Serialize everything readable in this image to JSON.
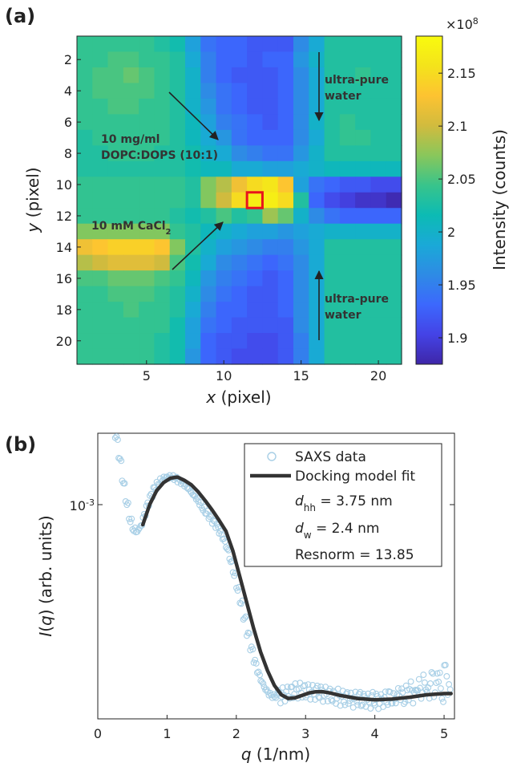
{
  "chart_data": [
    {
      "panel": "(a)",
      "type": "heatmap",
      "xlabel_var": "x",
      "xlabel_rest": " (pixel)",
      "ylabel_var": "y",
      "ylabel_rest": " (pixel)",
      "xlim": [
        0.5,
        21.5
      ],
      "ylim": [
        21.5,
        0.5
      ],
      "xticks": [
        5,
        10,
        15,
        20
      ],
      "yticks": [
        2,
        4,
        6,
        8,
        10,
        12,
        14,
        16,
        18,
        20
      ],
      "colorbar": {
        "label": "Intensity (counts)",
        "multiplier_base": "×10",
        "multiplier_exp": "8",
        "range": [
          1.875,
          2.185
        ],
        "ticks": [
          1.9,
          1.95,
          2,
          2.05,
          2.1,
          2.15
        ],
        "tick_labels": [
          "1.9",
          "1.95",
          "2",
          "2.05",
          "2.1",
          "2.15"
        ],
        "colormap": [
          "#3e26a8",
          "#4443e6",
          "#3c68fd",
          "#2e8be5",
          "#1aa9d7",
          "#0cbbb4",
          "#38c48b",
          "#89c75b",
          "#d1bb3e",
          "#fdc331",
          "#f4e31b",
          "#f9fb0e"
        ]
      },
      "values_x1e8": [
        [
          2.04,
          2.04,
          2.04,
          2.04,
          2.04,
          2.03,
          2.02,
          1.98,
          1.94,
          1.93,
          1.93,
          1.92,
          1.92,
          1.92,
          1.96,
          1.99,
          2.03,
          2.03,
          2.03,
          2.03,
          2.03
        ],
        [
          2.04,
          2.04,
          2.05,
          2.05,
          2.04,
          2.04,
          2.03,
          1.99,
          1.95,
          1.93,
          1.93,
          1.92,
          1.93,
          1.93,
          1.97,
          2.0,
          2.03,
          2.03,
          2.03,
          2.03,
          2.03
        ],
        [
          2.04,
          2.05,
          2.05,
          2.06,
          2.05,
          2.04,
          2.03,
          2.0,
          1.95,
          1.93,
          1.92,
          1.92,
          1.92,
          1.93,
          1.96,
          1.99,
          2.03,
          2.03,
          2.04,
          2.03,
          2.03
        ],
        [
          2.04,
          2.05,
          2.05,
          2.05,
          2.05,
          2.04,
          2.03,
          2.0,
          1.96,
          1.94,
          1.93,
          1.92,
          1.92,
          1.93,
          1.96,
          1.99,
          2.03,
          2.03,
          2.03,
          2.03,
          2.03
        ],
        [
          2.04,
          2.04,
          2.05,
          2.05,
          2.04,
          2.04,
          2.03,
          2.0,
          1.97,
          1.94,
          1.93,
          1.92,
          1.92,
          1.93,
          1.96,
          1.99,
          2.03,
          2.03,
          2.03,
          2.03,
          2.03
        ],
        [
          2.04,
          2.04,
          2.04,
          2.04,
          2.04,
          2.04,
          2.03,
          2.01,
          1.98,
          1.95,
          1.94,
          1.93,
          1.92,
          1.93,
          1.96,
          2.0,
          2.03,
          2.04,
          2.03,
          2.03,
          2.03
        ],
        [
          2.03,
          2.04,
          2.04,
          2.04,
          2.04,
          2.04,
          2.03,
          2.01,
          1.99,
          1.97,
          1.94,
          1.93,
          1.93,
          1.93,
          1.96,
          1.99,
          2.03,
          2.04,
          2.04,
          2.03,
          2.03
        ],
        [
          2.03,
          2.03,
          2.04,
          2.04,
          2.04,
          2.03,
          2.03,
          2.02,
          2.0,
          1.99,
          1.96,
          1.95,
          1.94,
          1.94,
          1.97,
          2.0,
          2.03,
          2.03,
          2.03,
          2.03,
          2.03
        ],
        [
          2.03,
          2.03,
          2.03,
          2.03,
          2.03,
          2.03,
          2.03,
          2.02,
          2.01,
          2.01,
          1.99,
          1.99,
          1.98,
          1.98,
          1.99,
          2.0,
          2.01,
          2.01,
          2.01,
          2.01,
          2.01
        ],
        [
          2.04,
          2.04,
          2.04,
          2.04,
          2.04,
          2.04,
          2.04,
          2.03,
          2.07,
          2.09,
          2.12,
          2.15,
          2.16,
          2.13,
          1.98,
          1.94,
          1.93,
          1.92,
          1.92,
          1.91,
          1.91
        ],
        [
          2.04,
          2.04,
          2.04,
          2.04,
          2.04,
          2.04,
          2.04,
          2.03,
          2.07,
          2.1,
          2.15,
          2.17,
          2.17,
          2.15,
          2.03,
          1.93,
          1.91,
          1.9,
          1.89,
          1.89,
          1.88
        ],
        [
          2.04,
          2.04,
          2.04,
          2.04,
          2.04,
          2.04,
          2.03,
          2.02,
          2.03,
          2.05,
          2.03,
          2.04,
          2.08,
          2.06,
          2.0,
          1.96,
          1.94,
          1.93,
          1.93,
          1.93,
          1.93
        ],
        [
          2.07,
          2.07,
          2.07,
          2.07,
          2.07,
          2.07,
          2.04,
          2.03,
          2.01,
          2.0,
          1.99,
          1.98,
          1.98,
          1.97,
          1.98,
          1.99,
          2.0,
          2.0,
          2.0,
          2.0,
          2.0
        ],
        [
          2.12,
          2.13,
          2.14,
          2.14,
          2.14,
          2.13,
          2.07,
          2.03,
          2.0,
          1.98,
          1.97,
          1.96,
          1.95,
          1.95,
          1.97,
          1.99,
          2.03,
          2.03,
          2.03,
          2.03,
          2.03
        ],
        [
          2.09,
          2.1,
          2.11,
          2.11,
          2.11,
          2.1,
          2.05,
          2.02,
          1.99,
          1.96,
          1.95,
          1.94,
          1.93,
          1.94,
          1.96,
          1.99,
          2.03,
          2.03,
          2.03,
          2.03,
          2.03
        ],
        [
          2.05,
          2.05,
          2.06,
          2.06,
          2.06,
          2.05,
          2.04,
          2.01,
          1.97,
          1.95,
          1.94,
          1.93,
          1.92,
          1.93,
          1.96,
          1.99,
          2.03,
          2.03,
          2.03,
          2.03,
          2.03
        ],
        [
          2.04,
          2.04,
          2.05,
          2.05,
          2.05,
          2.04,
          2.03,
          2.0,
          1.96,
          1.94,
          1.93,
          1.92,
          1.92,
          1.93,
          1.96,
          1.99,
          2.03,
          2.03,
          2.03,
          2.03,
          2.03
        ],
        [
          2.04,
          2.04,
          2.04,
          2.05,
          2.04,
          2.04,
          2.03,
          1.99,
          1.95,
          1.93,
          1.93,
          1.92,
          1.92,
          1.93,
          1.96,
          1.99,
          2.03,
          2.03,
          2.03,
          2.03,
          2.03
        ],
        [
          2.04,
          2.04,
          2.04,
          2.04,
          2.04,
          2.04,
          2.02,
          1.98,
          1.94,
          1.93,
          1.92,
          1.92,
          1.92,
          1.92,
          1.96,
          1.99,
          2.03,
          2.03,
          2.03,
          2.03,
          2.03
        ],
        [
          2.04,
          2.04,
          2.04,
          2.04,
          2.04,
          2.03,
          2.02,
          1.98,
          1.93,
          1.92,
          1.92,
          1.91,
          1.91,
          1.92,
          1.95,
          1.99,
          2.03,
          2.03,
          2.03,
          2.03,
          2.03
        ],
        [
          2.04,
          2.04,
          2.04,
          2.04,
          2.04,
          2.03,
          2.02,
          1.97,
          1.93,
          1.92,
          1.91,
          1.91,
          1.91,
          1.92,
          1.95,
          1.99,
          2.03,
          2.03,
          2.03,
          2.03,
          2.03
        ]
      ],
      "highlight_pixel": {
        "x": 12,
        "y": 11,
        "color": "#e8141c"
      },
      "annotations": {
        "water_top": [
          "ultra-pure",
          "water"
        ],
        "lipid": [
          "10 mg/ml",
          "DOPC:DOPS (10:1)"
        ],
        "cacl": {
          "text": "10 mM CaCl",
          "sub": "2"
        },
        "water_bottom": [
          "ultra-pure",
          "water"
        ]
      }
    },
    {
      "panel": "(b)",
      "type": "scatter",
      "xlabel_var": "q",
      "xlabel_rest": " (1/nm)",
      "ylabel_pre": "I",
      "ylabel_var": "q",
      "ylabel_rest": " (arb. units)",
      "yscale": "log",
      "xlim": [
        0,
        5.15
      ],
      "xticks": [
        0,
        1,
        2,
        3,
        4,
        5
      ],
      "ytick_label": {
        "base": "10",
        "exp": "-3",
        "value": 0.001
      },
      "series": [
        {
          "name": "SAXS data",
          "marker": "open-circle",
          "color": "#a8cfe6",
          "x": [
            0.27,
            0.32,
            0.37,
            0.42,
            0.47,
            0.52,
            0.57,
            0.62,
            0.67,
            0.72,
            0.77,
            0.82,
            0.87,
            0.92,
            0.97,
            1.02,
            1.07,
            1.12,
            1.17,
            1.22,
            1.27,
            1.32,
            1.37,
            1.42,
            1.47,
            1.52,
            1.57,
            1.62,
            1.67,
            1.72,
            1.77,
            1.82,
            1.87,
            1.92,
            1.97,
            2.02,
            2.07,
            2.12,
            2.17,
            2.22,
            2.27,
            2.32,
            2.37,
            2.42,
            2.47,
            2.52,
            2.57,
            2.62,
            2.67,
            2.72,
            2.77,
            2.82,
            2.87,
            2.92,
            2.97,
            3.02,
            3.07,
            3.12,
            3.17,
            3.22,
            3.27,
            3.32,
            3.37,
            3.42,
            3.47,
            3.52,
            3.57,
            3.62,
            3.67,
            3.72,
            3.77,
            3.82,
            3.87,
            3.92,
            3.97,
            4.02,
            4.07,
            4.12,
            4.17,
            4.22,
            4.27,
            4.32,
            4.37,
            4.42,
            4.47,
            4.52,
            4.57,
            4.62,
            4.67,
            4.72,
            4.77,
            4.82,
            4.87,
            4.92,
            4.97,
            5.02,
            5.07
          ],
          "y": [
            0.0016,
            0.00135,
            0.00112,
            0.00095,
            0.00083,
            0.00077,
            0.00076,
            0.00079,
            0.00086,
            0.00094,
            0.00101,
            0.00107,
            0.00111,
            0.00114,
            0.00116,
            0.00117,
            0.00117,
            0.00116,
            0.00114,
            0.00112,
            0.00109,
            0.00106,
            0.00102,
            0.00099,
            0.00095,
            0.00091,
            0.00088,
            0.00085,
            0.00082,
            0.00079,
            0.00075,
            0.00071,
            0.00066,
            0.0006,
            0.00054,
            0.00048,
            0.00043,
            0.00038,
            0.000335,
            0.000298,
            0.000268,
            0.000245,
            0.000228,
            0.000216,
            0.000208,
            0.000204,
            0.000203,
            0.000204,
            0.000206,
            0.000208,
            0.00021,
            0.000212,
            0.000213,
            0.000214,
            0.000213,
            0.000212,
            0.000211,
            0.00021,
            0.000211,
            0.000209,
            0.000207,
            0.000208,
            0.000205,
            0.000203,
            0.000204,
            0.000201,
            0.0002,
            0.000202,
            0.000198,
            0.000199,
            0.000201,
            0.000197,
            0.000199,
            0.000196,
            0.0002,
            0.000198,
            0.000195,
            0.000199,
            0.0002,
            0.000203,
            0.000197,
            0.000205,
            0.000209,
            0.000201,
            0.00021,
            0.000216,
            0.000204,
            0.000222,
            0.000212,
            0.000228,
            0.000207,
            0.000236,
            0.000214,
            0.000243,
            0.000205,
            0.000251,
            0.000212
          ]
        },
        {
          "name": "Docking model fit",
          "marker": "line",
          "color": "#333333",
          "x": [
            0.65,
            0.75,
            0.85,
            0.95,
            1.05,
            1.15,
            1.25,
            1.35,
            1.45,
            1.55,
            1.65,
            1.75,
            1.85,
            1.95,
            2.05,
            2.15,
            2.25,
            2.35,
            2.45,
            2.55,
            2.65,
            2.75,
            2.85,
            2.95,
            3.05,
            3.15,
            3.25,
            3.35,
            3.5,
            3.75,
            4.0,
            4.25,
            4.5,
            4.75,
            5.0,
            5.1
          ],
          "y": [
            0.0008,
            0.00094,
            0.00105,
            0.00112,
            0.00116,
            0.00117,
            0.00114,
            0.0011,
            0.00104,
            0.00097,
            0.0009,
            0.00083,
            0.00076,
            0.00065,
            0.00053,
            0.00043,
            0.00035,
            0.00029,
            0.00025,
            0.000222,
            0.000206,
            0.0002,
            0.000201,
            0.000205,
            0.000209,
            0.000211,
            0.000211,
            0.000209,
            0.000205,
            0.0002,
            0.000198,
            0.000199,
            0.000202,
            0.000206,
            0.000208,
            0.000208
          ]
        }
      ],
      "legend_params": [
        {
          "sym": "d",
          "sub": "hh",
          "rest": " = 3.75 nm"
        },
        {
          "sym": "d",
          "sub": "w",
          "rest": " = 2.4 nm"
        },
        {
          "sym": "",
          "sub": "",
          "rest": "Resnorm = 13.85"
        }
      ]
    }
  ]
}
